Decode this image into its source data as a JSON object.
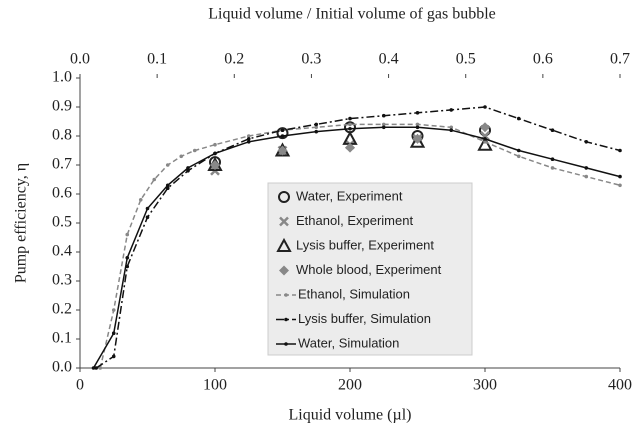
{
  "chart_data": {
    "type": "scatter-line",
    "x_label": "Liquid volume (µl)",
    "x2_label": "Liquid volume / Initial volume of gas bubble",
    "y_label": "Pump efficiency, η",
    "xlim": [
      0,
      400
    ],
    "xticks": [
      0,
      100,
      200,
      300,
      400
    ],
    "x2lim": [
      0,
      0.7
    ],
    "x2ticks": [
      {
        "value": 0,
        "label": "0.0"
      },
      0.1,
      0.2,
      0.3,
      0.4,
      0.5,
      0.6,
      0.7
    ],
    "ylim": [
      0,
      1
    ],
    "yticks": [
      {
        "value": 0,
        "label": "0.0"
      },
      0.1,
      0.2,
      0.3,
      0.4,
      0.5,
      0.6,
      0.7,
      0.8,
      0.9,
      {
        "value": 1,
        "label": "1.0"
      }
    ],
    "grid": false,
    "series": [
      {
        "name": "Water, Experiment",
        "color": "#222222",
        "marker": "circle",
        "line": "none",
        "x": [
          100,
          150,
          200,
          250,
          300
        ],
        "values": [
          0.71,
          0.81,
          0.83,
          0.8,
          0.82
        ]
      },
      {
        "name": "Ethanol, Experiment",
        "color": "#888888",
        "marker": "x",
        "line": "none",
        "x": [
          100,
          150,
          200,
          250,
          300
        ],
        "values": [
          0.68,
          0.75,
          0.77,
          0.79,
          0.8
        ]
      },
      {
        "name": "Lysis buffer, Experiment",
        "color": "#222222",
        "marker": "triangle",
        "line": "none",
        "x": [
          100,
          150,
          200,
          250,
          300
        ],
        "values": [
          0.7,
          0.75,
          0.79,
          0.78,
          0.77
        ]
      },
      {
        "name": "Whole blood, Experiment",
        "color": "#888888",
        "marker": "diamond",
        "line": "none",
        "x": [
          100,
          150,
          200,
          250,
          300
        ],
        "values": [
          0.7,
          0.75,
          0.76,
          0.79,
          0.83
        ]
      },
      {
        "name": "Ethanol, Simulation",
        "color": "#888888",
        "marker": "dot",
        "line": "dashed",
        "x": [
          15,
          25,
          35,
          45,
          55,
          65,
          75,
          85,
          100,
          125,
          150,
          175,
          200,
          225,
          250,
          275,
          300,
          325,
          350,
          375,
          400
        ],
        "values": [
          0,
          0.2,
          0.46,
          0.58,
          0.65,
          0.7,
          0.73,
          0.75,
          0.77,
          0.8,
          0.82,
          0.83,
          0.84,
          0.84,
          0.84,
          0.83,
          0.78,
          0.73,
          0.69,
          0.66,
          0.63
        ]
      },
      {
        "name": "Lysis buffer, Simulation",
        "color": "#111111",
        "marker": "dot",
        "line": "dashdot",
        "x": [
          12,
          25,
          35,
          50,
          65,
          80,
          100,
          125,
          150,
          175,
          200,
          225,
          250,
          275,
          300,
          325,
          350,
          375,
          400
        ],
        "values": [
          0,
          0.04,
          0.35,
          0.52,
          0.62,
          0.68,
          0.74,
          0.79,
          0.82,
          0.84,
          0.86,
          0.87,
          0.88,
          0.89,
          0.9,
          0.86,
          0.82,
          0.78,
          0.75
        ]
      },
      {
        "name": "Water, Simulation",
        "color": "#111111",
        "marker": "dot",
        "line": "solid",
        "x": [
          10,
          25,
          35,
          50,
          65,
          80,
          100,
          125,
          150,
          175,
          200,
          225,
          250,
          275,
          300,
          325,
          350,
          375,
          400
        ],
        "values": [
          0,
          0.12,
          0.38,
          0.55,
          0.63,
          0.69,
          0.74,
          0.78,
          0.8,
          0.815,
          0.825,
          0.83,
          0.83,
          0.82,
          0.79,
          0.75,
          0.72,
          0.69,
          0.66
        ]
      }
    ]
  }
}
